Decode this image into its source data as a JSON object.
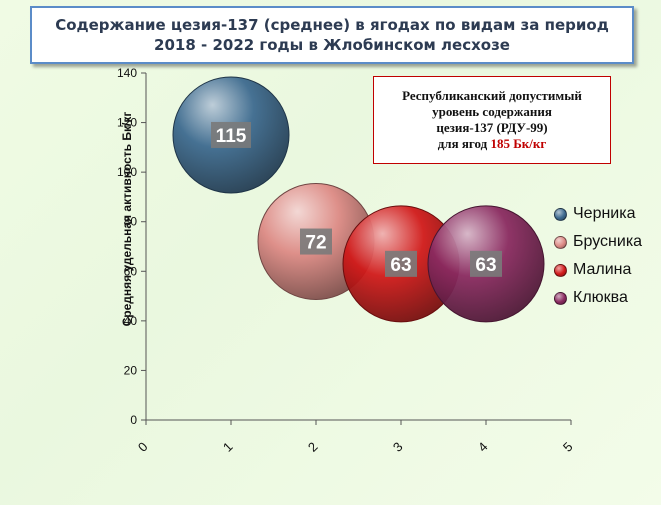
{
  "title": {
    "line1": "Содержание цезия-137 (среднее) в ягодах по видам за период",
    "line2": "2018 - 2022 годы в Жлобинском лесхозе"
  },
  "annotation": {
    "line1": "Республиканский допустимый",
    "line2": "уровень содержания",
    "line3": "цезия-137 (РДУ-99)",
    "line4_prefix": "для ягод ",
    "line4_value": "185 Бк/кг"
  },
  "chart_data": {
    "type": "scatter",
    "subtype": "bubble",
    "title": "Содержание цезия-137 (среднее) в ягодах по видам за период 2018 - 2022 годы в Жлобинском лесхозе",
    "ylabel": "Средняя удельная  активность  Бк/кг",
    "xlabel": "",
    "xlim": [
      0,
      5
    ],
    "ylim": [
      0,
      140
    ],
    "x_ticks": [
      "0",
      "1",
      "2",
      "3",
      "4",
      "5"
    ],
    "y_ticks": [
      "0",
      "20",
      "40",
      "60",
      "80",
      "100",
      "120",
      "140"
    ],
    "grid": false,
    "legend_position": "right",
    "series": [
      {
        "name": "Черника",
        "x": 1,
        "y": 115,
        "label": "115",
        "color": "#3d6a8f"
      },
      {
        "name": "Брусника",
        "x": 2,
        "y": 72,
        "label": "72",
        "color": "#dd8a85"
      },
      {
        "name": "Малина",
        "x": 3,
        "y": 63,
        "label": "63",
        "color": "#d11a1a"
      },
      {
        "name": "Клюква",
        "x": 4,
        "y": 63,
        "label": "63",
        "color": "#8a2a60"
      }
    ]
  }
}
